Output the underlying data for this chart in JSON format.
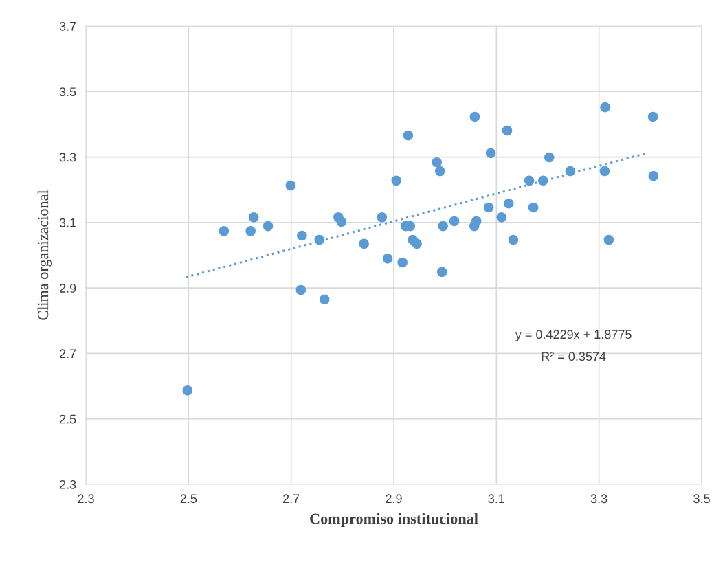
{
  "chart_data": {
    "type": "scatter",
    "xlabel": "Compromiso institucional",
    "ylabel": "Clima organizacional",
    "xlim": [
      2.3,
      3.5
    ],
    "xticks": [
      2.3,
      2.5,
      2.7,
      2.9,
      3.1,
      3.3,
      3.5
    ],
    "ylim": [
      2.3,
      3.7
    ],
    "yticks": [
      2.3,
      2.5,
      2.7,
      2.9,
      3.1,
      3.3,
      3.5,
      3.7
    ],
    "grid": true,
    "marker": "circle",
    "series": [
      {
        "color": "#5b9bd5",
        "x": [
          2.498,
          2.569,
          2.621,
          2.627,
          2.655,
          2.699,
          2.721,
          2.719,
          2.755,
          2.765,
          2.792,
          2.798,
          2.842,
          2.877,
          2.888,
          2.905,
          2.917,
          2.923,
          2.928,
          2.932,
          2.937,
          2.945,
          2.984,
          2.99,
          2.994,
          2.996,
          3.018,
          3.058,
          3.057,
          3.061,
          3.085,
          3.089,
          3.11,
          3.121,
          3.124,
          3.133,
          3.164,
          3.172,
          3.191,
          3.203,
          3.244,
          3.312,
          3.311,
          3.319,
          3.405,
          3.406
        ],
        "values": [
          2.587,
          3.074,
          3.074,
          3.116,
          3.089,
          3.213,
          3.06,
          2.894,
          3.047,
          2.865,
          3.116,
          3.102,
          3.035,
          3.116,
          2.99,
          3.228,
          2.978,
          3.089,
          3.366,
          3.089,
          3.047,
          3.035,
          3.284,
          3.257,
          2.949,
          3.089,
          3.104,
          3.423,
          3.089,
          3.104,
          3.146,
          3.312,
          3.116,
          3.381,
          3.158,
          3.047,
          3.228,
          3.146,
          3.228,
          3.299,
          3.257,
          3.452,
          3.257,
          3.047,
          3.423,
          3.242
        ]
      },
      {
        "type": "line",
        "color": "#5b9bd5",
        "line_style": "dotted",
        "marker": "none",
        "x": [
          2.495,
          3.395
        ],
        "values": [
          2.933,
          3.313
        ]
      }
    ],
    "annotations": [
      "y = 0.4229x + 1.8775",
      "R² = 0.3574"
    ]
  }
}
